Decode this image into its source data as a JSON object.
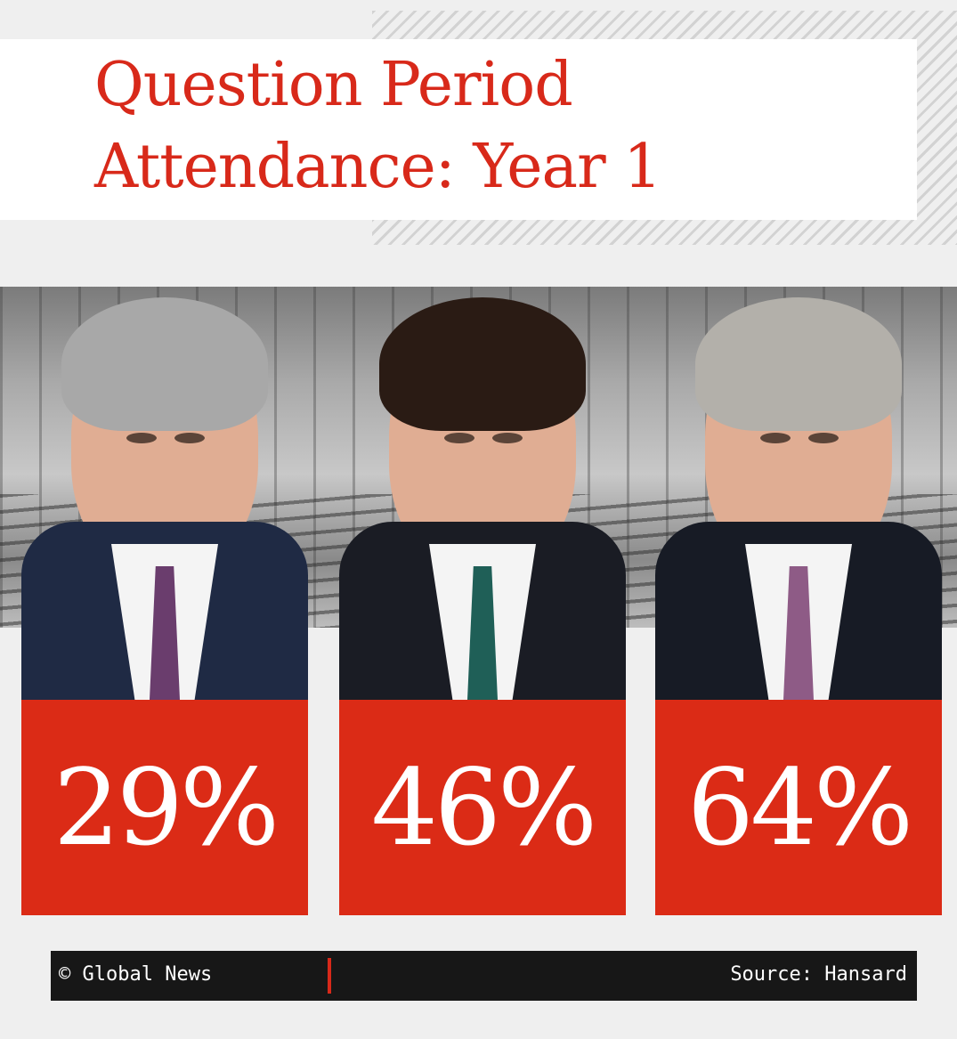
{
  "title": {
    "line1": "Question Period",
    "line2": "Attendance: Year 1",
    "color": "#d8291a"
  },
  "leaders": [
    {
      "attendance": "29%",
      "hair_color": "#a8a8a8",
      "tie_color": "#6a3d6d",
      "suit_color": "#1f2a44"
    },
    {
      "attendance": "46%",
      "hair_color": "#2a1b14",
      "tie_color": "#1f5f57",
      "suit_color": "#1a1c24"
    },
    {
      "attendance": "64%",
      "hair_color": "#b3b0aa",
      "tie_color": "#8e5b86",
      "suit_color": "#171b25"
    }
  ],
  "panel_color": "#db2b16",
  "footer": {
    "credit": "© Global News",
    "source": "Source: Hansard"
  }
}
